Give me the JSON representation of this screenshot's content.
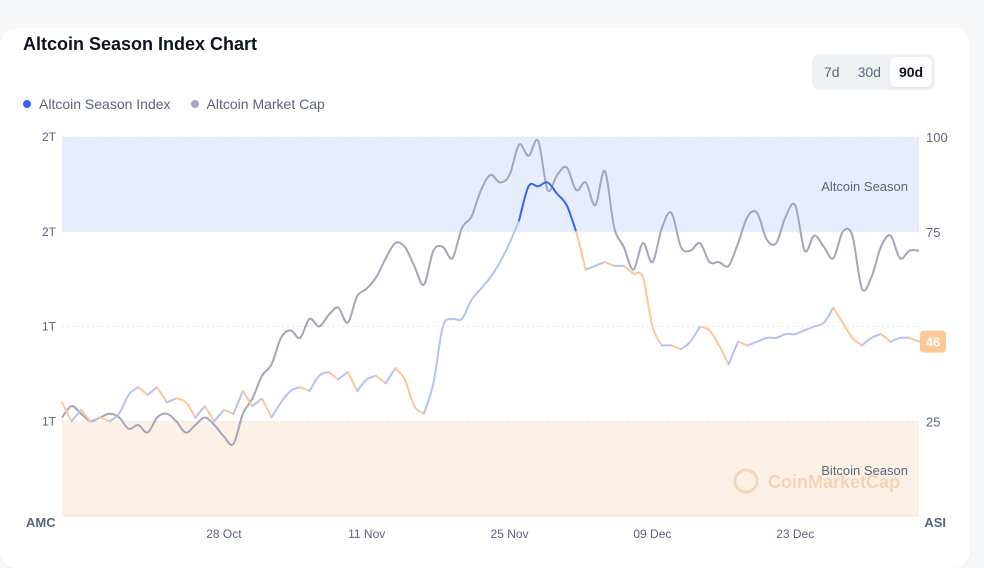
{
  "card": {
    "title": "Altcoin Season Index Chart",
    "tabs": [
      {
        "label": "7d",
        "active": false
      },
      {
        "label": "30d",
        "active": false
      },
      {
        "label": "90d",
        "active": true
      }
    ],
    "legend": [
      {
        "label": "Altcoin Season Index",
        "color": "#3861fb"
      },
      {
        "label": "Altcoin Market Cap",
        "color": "#a1a7bb"
      }
    ]
  },
  "chart_data": {
    "type": "line",
    "left_axis": {
      "ticks": [
        "2T",
        "2T",
        "1T",
        "1T"
      ]
    },
    "right_axis": {
      "ticks": [
        "100",
        "75",
        "25"
      ],
      "range": [
        0,
        100
      ]
    },
    "x_tick_labels": [
      "28 Oct",
      "11 Nov",
      "25 Nov",
      "09 Dec",
      "23 Dec"
    ],
    "x_corner_left": "AMC",
    "x_corner_right": "ASI",
    "zones": [
      {
        "label": "Altcoin Season",
        "from": 75,
        "to": 100,
        "color": "#e8edfe"
      },
      {
        "label": "Bitcoin Season",
        "from": 0,
        "to": 25,
        "color": "#fdf0e6"
      }
    ],
    "current_value_badge": "46",
    "watermark": "CoinMarketCap",
    "colors": {
      "index_alt": "#3861fb",
      "index_mid_up": "#b4c2f5",
      "index_mid_down": "#fdc796",
      "index_btc": "#f7931a",
      "market_cap": "#a1a7bb",
      "badge": "#fdc796"
    },
    "series": [
      {
        "name": "Altcoin Season Index",
        "x": [
          0,
          1,
          2,
          3,
          4,
          5,
          6,
          7,
          8,
          9,
          10,
          11,
          12,
          13,
          14,
          15,
          16,
          17,
          18,
          19,
          20,
          21,
          22,
          23,
          24,
          25,
          26,
          27,
          28,
          29,
          30,
          31,
          32,
          33,
          34,
          35,
          36,
          37,
          38,
          39,
          40,
          41,
          42,
          43,
          44,
          45,
          46,
          47,
          48,
          49,
          50,
          51,
          52,
          53,
          54,
          55,
          56,
          57,
          58,
          59,
          60,
          61,
          62,
          63,
          64,
          65,
          66,
          67,
          68,
          69,
          70,
          71,
          72,
          73,
          74,
          75,
          76,
          77,
          78,
          79,
          80,
          81,
          82,
          83,
          84,
          85,
          86,
          87,
          88,
          89,
          90
        ],
        "values": [
          30,
          25,
          28,
          25,
          26,
          25,
          27,
          32,
          34,
          32,
          34,
          30,
          31,
          30,
          26,
          29,
          25,
          28,
          27,
          33,
          29,
          31,
          26,
          30,
          33,
          34,
          33,
          37,
          38,
          36,
          38,
          33,
          36,
          37,
          35,
          39,
          36,
          29,
          27,
          35,
          50,
          52,
          52,
          57,
          60,
          63,
          67,
          72,
          78,
          87,
          87,
          88,
          85,
          82,
          75,
          65,
          66,
          67,
          66,
          66,
          64,
          63,
          50,
          45,
          45,
          44,
          46,
          50,
          49,
          45,
          40,
          46,
          45,
          46,
          47,
          47,
          48,
          48,
          49,
          50,
          51,
          55,
          51,
          47,
          45,
          47,
          48,
          46,
          47,
          47,
          46
        ]
      },
      {
        "name": "Altcoin Market Cap",
        "x": [
          0,
          1,
          2,
          3,
          4,
          5,
          6,
          7,
          8,
          9,
          10,
          11,
          12,
          13,
          14,
          15,
          16,
          17,
          18,
          19,
          20,
          21,
          22,
          23,
          24,
          25,
          26,
          27,
          28,
          29,
          30,
          31,
          32,
          33,
          34,
          35,
          36,
          37,
          38,
          39,
          40,
          41,
          42,
          43,
          44,
          45,
          46,
          47,
          48,
          49,
          50,
          51,
          52,
          53,
          54,
          55,
          56,
          57,
          58,
          59,
          60,
          61,
          62,
          63,
          64,
          65,
          66,
          67,
          68,
          69,
          70,
          71,
          72,
          73,
          74,
          75,
          76,
          77,
          78,
          79,
          80,
          81,
          82,
          83,
          84,
          85,
          86,
          87,
          88,
          89,
          90
        ],
        "values": [
          26,
          29,
          27,
          25,
          26,
          27,
          26,
          23,
          24,
          22,
          26,
          27,
          25,
          22,
          24,
          26,
          24,
          21,
          19,
          27,
          31,
          37,
          40,
          47,
          49,
          47,
          52,
          50,
          53,
          55,
          51,
          58,
          60,
          63,
          68,
          72,
          71,
          66,
          61,
          70,
          71,
          68,
          76,
          79,
          86,
          90,
          88,
          90,
          98,
          95,
          99,
          86,
          90,
          92,
          86,
          88,
          82,
          91,
          76,
          71,
          65,
          72,
          67,
          76,
          80,
          71,
          70,
          72,
          67,
          67,
          66,
          72,
          79,
          80,
          73,
          72,
          79,
          82,
          70,
          74,
          71,
          68,
          75,
          74,
          60,
          63,
          71,
          74,
          68,
          70,
          70
        ]
      }
    ]
  }
}
